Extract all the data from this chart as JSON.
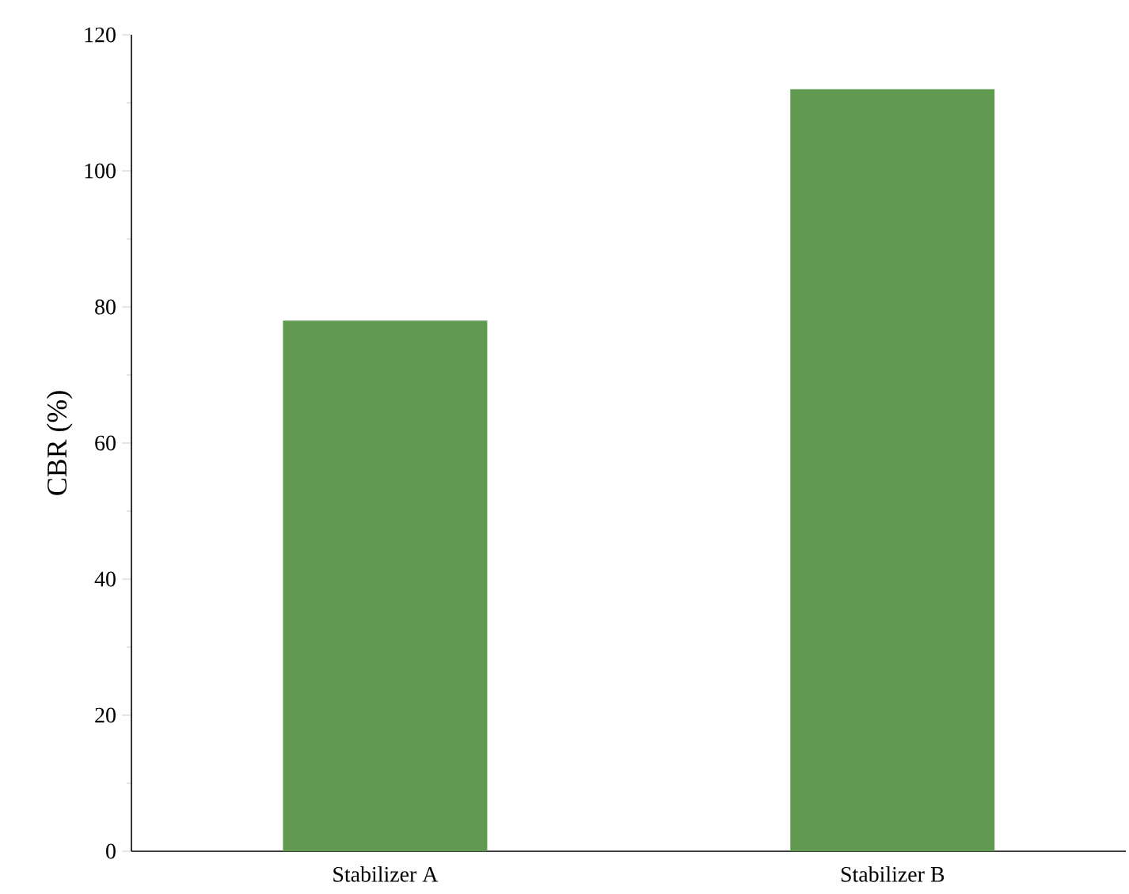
{
  "chart_data": {
    "type": "bar",
    "ylabel": "CBR (%)",
    "categories": [
      "Stabilizer A",
      "Stabilizer B"
    ],
    "values": [
      78,
      112
    ],
    "color": "#5f9a50",
    "ylim": [
      0,
      120
    ],
    "yticks": [
      0,
      20,
      40,
      60,
      80,
      100,
      120
    ]
  }
}
